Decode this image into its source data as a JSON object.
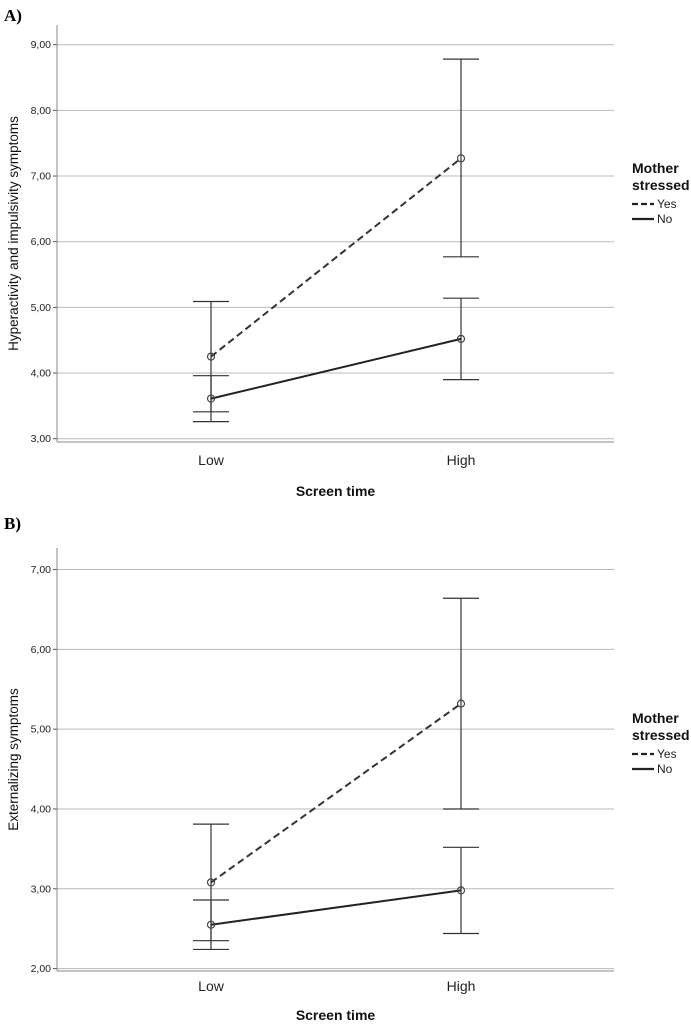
{
  "chart_data": [
    {
      "type": "line",
      "panel_label": "A)",
      "xlabel": "Screen time",
      "ylabel": "Hyperactivity and impulsivity symptoms",
      "categories": [
        "Low",
        "High"
      ],
      "ylim": [
        2.95,
        9.3
      ],
      "yticks": [
        3,
        4,
        5,
        6,
        7,
        8,
        9
      ],
      "ytick_labels": [
        "3,00",
        "4,00",
        "5,00",
        "6,00",
        "7,00",
        "8,00",
        "9,00"
      ],
      "grid": true,
      "legend": {
        "title_lines": [
          "Mother",
          "stressed"
        ],
        "placement": "right"
      },
      "series": [
        {
          "name": "Yes",
          "dash": true,
          "color": "#333333",
          "values": [
            4.25,
            7.27
          ],
          "err_low": [
            3.41,
            5.77
          ],
          "err_high": [
            5.09,
            8.78
          ]
        },
        {
          "name": "No",
          "dash": false,
          "color": "#222222",
          "values": [
            3.61,
            4.52
          ],
          "err_low": [
            3.26,
            3.9
          ],
          "err_high": [
            3.96,
            5.14
          ]
        }
      ]
    },
    {
      "type": "line",
      "panel_label": "B)",
      "xlabel": "Screen time",
      "ylabel": "Externalizing symptoms",
      "categories": [
        "Low",
        "High"
      ],
      "ylim": [
        1.97,
        7.27
      ],
      "yticks": [
        2,
        3,
        4,
        5,
        6,
        7
      ],
      "ytick_labels": [
        "2,00",
        "3,00",
        "4,00",
        "5,00",
        "6,00",
        "7,00"
      ],
      "grid": true,
      "legend": {
        "title_lines": [
          "Mother",
          "stressed"
        ],
        "placement": "right"
      },
      "series": [
        {
          "name": "Yes",
          "dash": true,
          "color": "#333333",
          "values": [
            3.08,
            5.32
          ],
          "err_low": [
            2.35,
            4.0
          ],
          "err_high": [
            3.81,
            6.64
          ]
        },
        {
          "name": "No",
          "dash": false,
          "color": "#222222",
          "values": [
            2.55,
            2.98
          ],
          "err_low": [
            2.24,
            2.44
          ],
          "err_high": [
            2.86,
            3.52
          ]
        }
      ]
    }
  ]
}
